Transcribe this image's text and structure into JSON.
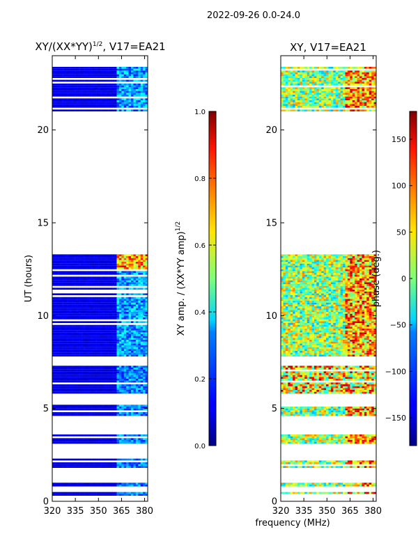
{
  "suptitle": "2022-09-26 0.0-24.0",
  "xaxis_label": "frequency (MHz)",
  "chart_data": [
    {
      "type": "heatmap",
      "title": "XY/(XX*YY)",
      "title_exponent": "1/2",
      "title_suffix": ", V17=EA21",
      "xlabel": "",
      "ylabel": "UT (hours)",
      "xlim": [
        320,
        382
      ],
      "ylim": [
        0,
        24
      ],
      "xticks": [
        320,
        335,
        350,
        365,
        380
      ],
      "yticks": [
        0,
        5,
        10,
        15,
        20
      ],
      "data_time_ranges_hours": [
        [
          0.3,
          0.5
        ],
        [
          0.8,
          1.0
        ],
        [
          1.8,
          2.3
        ],
        [
          3.1,
          3.6
        ],
        [
          4.6,
          5.2
        ],
        [
          5.8,
          7.3
        ],
        [
          7.8,
          13.3
        ],
        [
          21.0,
          23.4
        ]
      ],
      "colorbar": {
        "label": "XY amp. / (XX*YY amp)",
        "label_exponent": "1/2",
        "range": [
          0.0,
          1.0
        ],
        "ticks": [
          "0.0",
          "0.2",
          "0.4",
          "0.6",
          "0.8",
          "1.0"
        ],
        "colormap": "jet"
      }
    },
    {
      "type": "heatmap",
      "title": "XY, V17=EA21",
      "xlabel": "frequency (MHz)",
      "ylabel": "",
      "xlim": [
        320,
        382
      ],
      "ylim": [
        0,
        24
      ],
      "xticks": [
        320,
        335,
        350,
        365,
        380
      ],
      "yticks": [
        0,
        5,
        10,
        15,
        20
      ],
      "data_time_ranges_hours": [
        [
          0.3,
          0.5
        ],
        [
          0.8,
          1.0
        ],
        [
          1.8,
          2.3
        ],
        [
          3.1,
          3.6
        ],
        [
          4.6,
          5.2
        ],
        [
          5.8,
          7.3
        ],
        [
          7.8,
          13.3
        ],
        [
          21.0,
          23.4
        ]
      ],
      "colorbar": {
        "label": "phase (deg.)",
        "range": [
          -180,
          180
        ],
        "ticks": [
          "−150",
          "−100",
          "−50",
          "0",
          "50",
          "100",
          "150"
        ],
        "tick_values": [
          -150,
          -100,
          -50,
          0,
          50,
          100,
          150
        ],
        "colormap": "jet"
      }
    }
  ]
}
